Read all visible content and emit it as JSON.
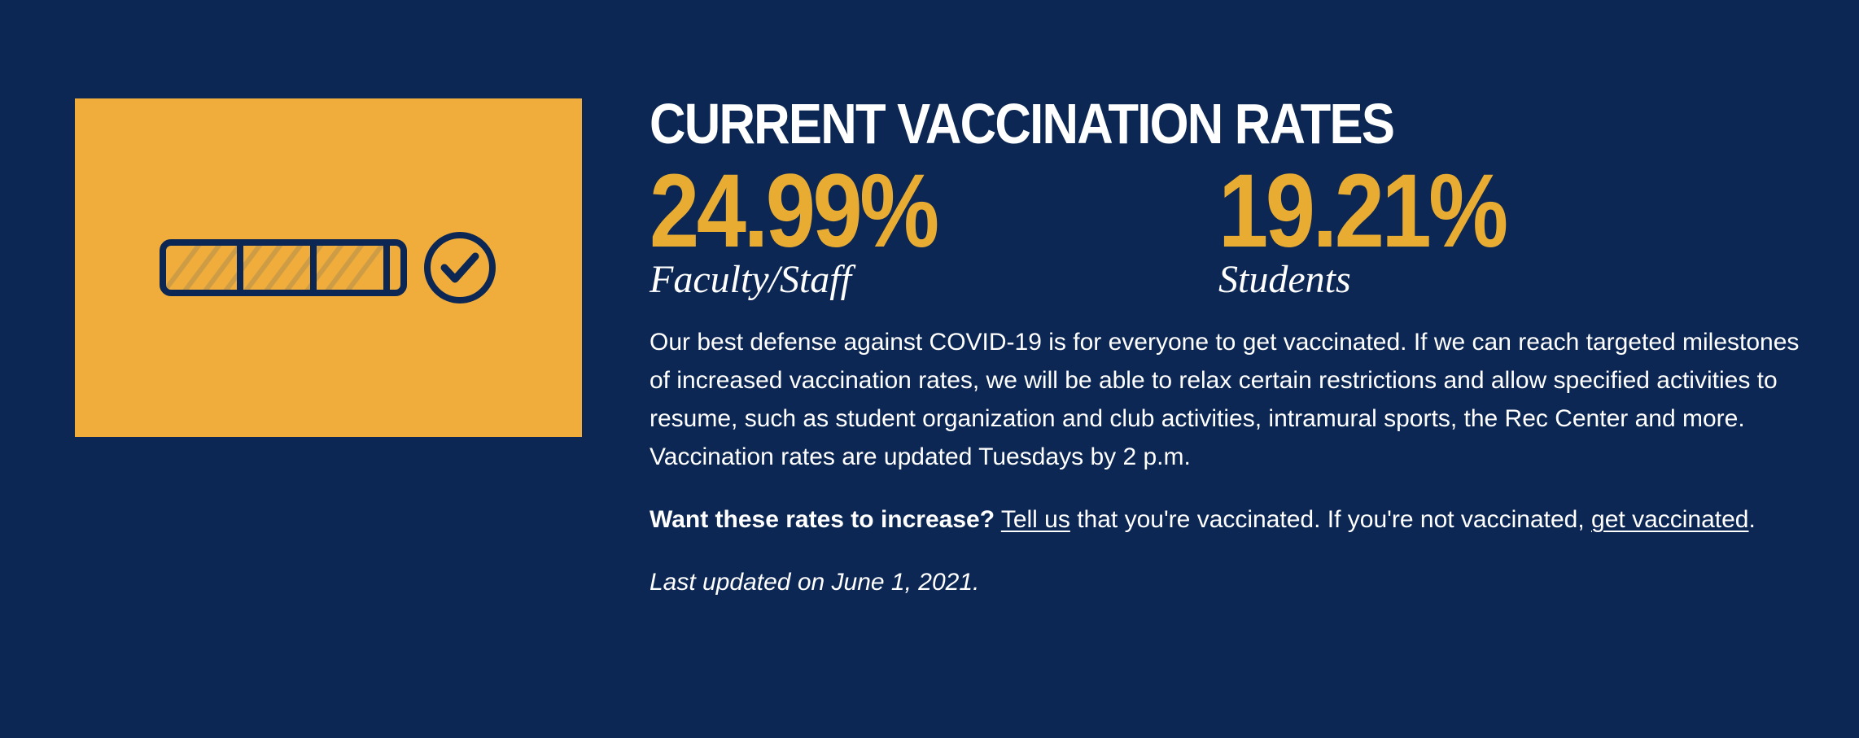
{
  "illustration": {
    "icon": "progress-bar-check-icon",
    "background_color": "#f0ad3c",
    "progress_fraction": 0.75
  },
  "heading": {
    "title": "CURRENT VACCINATION RATES"
  },
  "stats": [
    {
      "value": "24.99%",
      "label": "Faculty/Staff"
    },
    {
      "value": "19.21%",
      "label": "Students"
    }
  ],
  "body": {
    "intro": "Our best defense against COVID-19 is for everyone to get vaccinated. If we can reach targeted milestones of increased vaccination rates, we will be able to relax certain restrictions and allow specified activities to resume, such as student organization and club activities, intramural sports, the Rec Center and more. Vaccination rates are updated Tuesdays by 2 p.m.",
    "cta_question": "Want these rates to increase?",
    "cta_link_tell_us": "Tell us",
    "cta_middle": " that you're vaccinated. If you're not vaccinated, ",
    "cta_link_get_vaccinated": "get vaccinated",
    "cta_end": ".",
    "last_updated": "Last updated on June 1, 2021."
  },
  "colors": {
    "background": "#0c2753",
    "accent_gold": "#e8ac33",
    "text": "#ffffff"
  }
}
